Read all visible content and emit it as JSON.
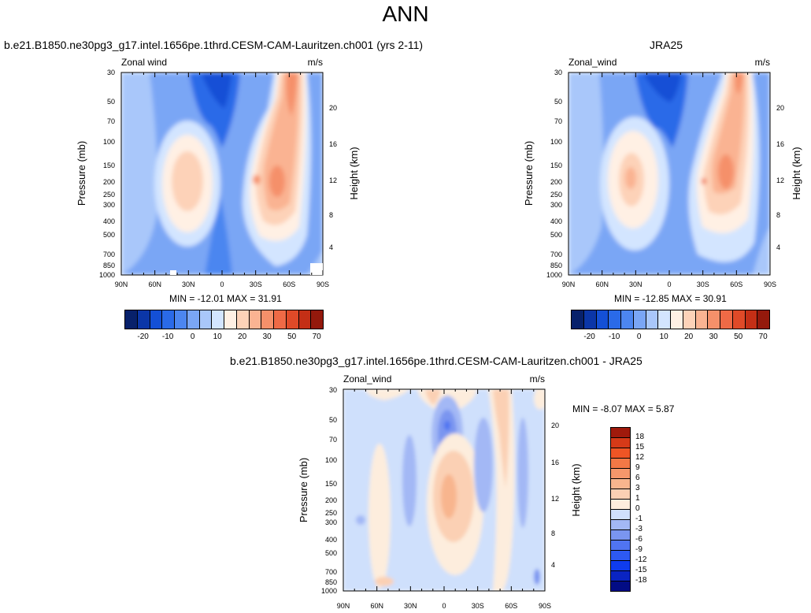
{
  "figure": {
    "title": "ANN"
  },
  "colors": {
    "diverging_16": [
      "#08216b",
      "#0b36a8",
      "#1450d6",
      "#2a6ae8",
      "#4c86f0",
      "#7aa6f5",
      "#a9c7fa",
      "#d3e5ff",
      "#fff0e4",
      "#fdd2b8",
      "#fab392",
      "#f5906a",
      "#ef6a46",
      "#e04a28",
      "#c42f16",
      "#94190c"
    ],
    "diff_16": [
      "#020c85",
      "#0a24c2",
      "#0f3cee",
      "#2d59f2",
      "#5074f1",
      "#7a95f0",
      "#a3b8f5",
      "#cfe0fc",
      "#fdeddd",
      "#fbd0b4",
      "#f8b58e",
      "#f5976b",
      "#f27846",
      "#ef5525",
      "#d63a18",
      "#a01a0c"
    ]
  },
  "chart_data": [
    {
      "type": "contour",
      "panel": "model",
      "title": "b.e21.B1850.ne30pg3_g17.intel.1656pe.1thrd.CESM-CAM-Lauritzen.ch001 (yrs 2-11)",
      "left_label": "Zonal wind",
      "right_label": "m/s",
      "xlabel": "",
      "ylabel": "Pressure (mb)",
      "y2label": "Height (km)",
      "xticks": [
        "90N",
        "60N",
        "30N",
        "0",
        "30S",
        "60S",
        "90S"
      ],
      "yticks": [
        "30",
        "50",
        "70",
        "100",
        "150",
        "200",
        "250",
        "300",
        "400",
        "500",
        "700",
        "850",
        "1000"
      ],
      "y2ticks": [
        "20",
        "16",
        "12",
        "8",
        "4"
      ],
      "ylim": [
        1000,
        30
      ],
      "stats": "MIN = -12.01   MAX =  31.91",
      "min": -12.01,
      "max": 31.91,
      "colorbar_labels": [
        "-20",
        "-10",
        "0",
        "10",
        "20",
        "30",
        "50",
        "70"
      ]
    },
    {
      "type": "contour",
      "panel": "obs",
      "title": "JRA25",
      "left_label": "Zonal_wind",
      "right_label": "m/s",
      "ylabel": "Pressure (mb)",
      "y2label": "Height (km)",
      "xticks": [
        "90N",
        "60N",
        "30N",
        "0",
        "30S",
        "60S",
        "90S"
      ],
      "yticks": [
        "30",
        "50",
        "70",
        "100",
        "150",
        "200",
        "250",
        "300",
        "400",
        "500",
        "700",
        "850",
        "1000"
      ],
      "y2ticks": [
        "20",
        "16",
        "12",
        "8",
        "4"
      ],
      "ylim": [
        1000,
        30
      ],
      "stats": "MIN = -12.85   MAX =  30.91",
      "min": -12.85,
      "max": 30.91,
      "colorbar_labels": [
        "-20",
        "-10",
        "0",
        "10",
        "20",
        "30",
        "50",
        "70"
      ]
    },
    {
      "type": "contour",
      "panel": "diff",
      "title": "b.e21.B1850.ne30pg3_g17.intel.1656pe.1thrd.CESM-CAM-Lauritzen.ch001 - JRA25",
      "left_label": "Zonal_wind",
      "right_label": "m/s",
      "ylabel": "Pressure (mb)",
      "y2label": "Height (km)",
      "xticks": [
        "90N",
        "60N",
        "30N",
        "0",
        "30S",
        "60S",
        "90S"
      ],
      "yticks": [
        "30",
        "50",
        "70",
        "100",
        "150",
        "200",
        "250",
        "300",
        "400",
        "500",
        "700",
        "850",
        "1000"
      ],
      "y2ticks": [
        "20",
        "16",
        "12",
        "8",
        "4"
      ],
      "ylim": [
        1000,
        30
      ],
      "stats": "MIN =  -8.07   MAX =   5.87",
      "min": -8.07,
      "max": 5.87,
      "colorbar_labels": [
        "18",
        "15",
        "12",
        "9",
        "6",
        "3",
        "1",
        "0",
        "-1",
        "-3",
        "-6",
        "-9",
        "-12",
        "-15",
        "-18"
      ]
    }
  ]
}
